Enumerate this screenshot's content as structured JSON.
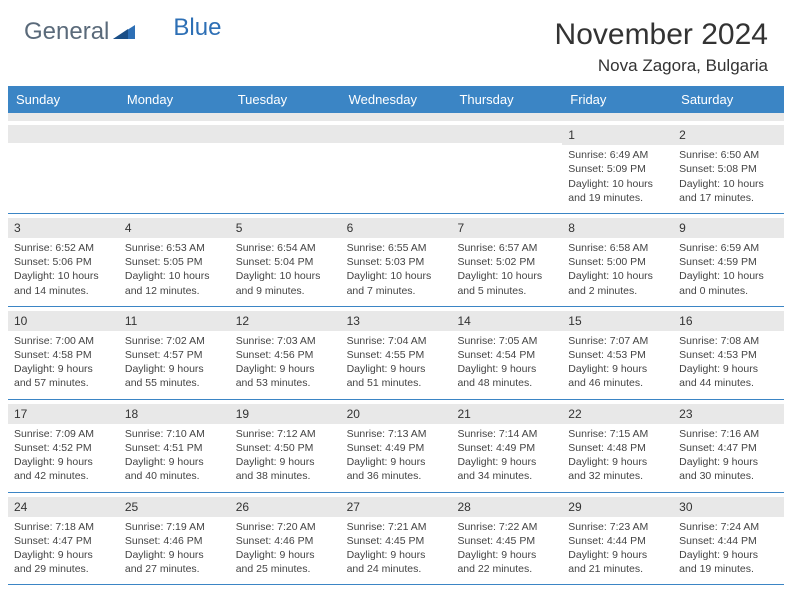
{
  "logo": {
    "part1": "General",
    "part2": "Blue"
  },
  "title": "November 2024",
  "location": "Nova Zagora, Bulgaria",
  "colors": {
    "header_bg": "#3b85c5",
    "header_fg": "#ffffff",
    "daynum_bg": "#e8e8e8",
    "rule": "#3b85c5",
    "text": "#333333",
    "logo_gray": "#5a6a7a",
    "logo_blue": "#2d6fb5"
  },
  "day_names": [
    "Sunday",
    "Monday",
    "Tuesday",
    "Wednesday",
    "Thursday",
    "Friday",
    "Saturday"
  ],
  "weeks": [
    [
      {
        "n": "",
        "sunrise": "",
        "sunset": "",
        "day": ""
      },
      {
        "n": "",
        "sunrise": "",
        "sunset": "",
        "day": ""
      },
      {
        "n": "",
        "sunrise": "",
        "sunset": "",
        "day": ""
      },
      {
        "n": "",
        "sunrise": "",
        "sunset": "",
        "day": ""
      },
      {
        "n": "",
        "sunrise": "",
        "sunset": "",
        "day": ""
      },
      {
        "n": "1",
        "sunrise": "Sunrise: 6:49 AM",
        "sunset": "Sunset: 5:09 PM",
        "day": "Daylight: 10 hours and 19 minutes."
      },
      {
        "n": "2",
        "sunrise": "Sunrise: 6:50 AM",
        "sunset": "Sunset: 5:08 PM",
        "day": "Daylight: 10 hours and 17 minutes."
      }
    ],
    [
      {
        "n": "3",
        "sunrise": "Sunrise: 6:52 AM",
        "sunset": "Sunset: 5:06 PM",
        "day": "Daylight: 10 hours and 14 minutes."
      },
      {
        "n": "4",
        "sunrise": "Sunrise: 6:53 AM",
        "sunset": "Sunset: 5:05 PM",
        "day": "Daylight: 10 hours and 12 minutes."
      },
      {
        "n": "5",
        "sunrise": "Sunrise: 6:54 AM",
        "sunset": "Sunset: 5:04 PM",
        "day": "Daylight: 10 hours and 9 minutes."
      },
      {
        "n": "6",
        "sunrise": "Sunrise: 6:55 AM",
        "sunset": "Sunset: 5:03 PM",
        "day": "Daylight: 10 hours and 7 minutes."
      },
      {
        "n": "7",
        "sunrise": "Sunrise: 6:57 AM",
        "sunset": "Sunset: 5:02 PM",
        "day": "Daylight: 10 hours and 5 minutes."
      },
      {
        "n": "8",
        "sunrise": "Sunrise: 6:58 AM",
        "sunset": "Sunset: 5:00 PM",
        "day": "Daylight: 10 hours and 2 minutes."
      },
      {
        "n": "9",
        "sunrise": "Sunrise: 6:59 AM",
        "sunset": "Sunset: 4:59 PM",
        "day": "Daylight: 10 hours and 0 minutes."
      }
    ],
    [
      {
        "n": "10",
        "sunrise": "Sunrise: 7:00 AM",
        "sunset": "Sunset: 4:58 PM",
        "day": "Daylight: 9 hours and 57 minutes."
      },
      {
        "n": "11",
        "sunrise": "Sunrise: 7:02 AM",
        "sunset": "Sunset: 4:57 PM",
        "day": "Daylight: 9 hours and 55 minutes."
      },
      {
        "n": "12",
        "sunrise": "Sunrise: 7:03 AM",
        "sunset": "Sunset: 4:56 PM",
        "day": "Daylight: 9 hours and 53 minutes."
      },
      {
        "n": "13",
        "sunrise": "Sunrise: 7:04 AM",
        "sunset": "Sunset: 4:55 PM",
        "day": "Daylight: 9 hours and 51 minutes."
      },
      {
        "n": "14",
        "sunrise": "Sunrise: 7:05 AM",
        "sunset": "Sunset: 4:54 PM",
        "day": "Daylight: 9 hours and 48 minutes."
      },
      {
        "n": "15",
        "sunrise": "Sunrise: 7:07 AM",
        "sunset": "Sunset: 4:53 PM",
        "day": "Daylight: 9 hours and 46 minutes."
      },
      {
        "n": "16",
        "sunrise": "Sunrise: 7:08 AM",
        "sunset": "Sunset: 4:53 PM",
        "day": "Daylight: 9 hours and 44 minutes."
      }
    ],
    [
      {
        "n": "17",
        "sunrise": "Sunrise: 7:09 AM",
        "sunset": "Sunset: 4:52 PM",
        "day": "Daylight: 9 hours and 42 minutes."
      },
      {
        "n": "18",
        "sunrise": "Sunrise: 7:10 AM",
        "sunset": "Sunset: 4:51 PM",
        "day": "Daylight: 9 hours and 40 minutes."
      },
      {
        "n": "19",
        "sunrise": "Sunrise: 7:12 AM",
        "sunset": "Sunset: 4:50 PM",
        "day": "Daylight: 9 hours and 38 minutes."
      },
      {
        "n": "20",
        "sunrise": "Sunrise: 7:13 AM",
        "sunset": "Sunset: 4:49 PM",
        "day": "Daylight: 9 hours and 36 minutes."
      },
      {
        "n": "21",
        "sunrise": "Sunrise: 7:14 AM",
        "sunset": "Sunset: 4:49 PM",
        "day": "Daylight: 9 hours and 34 minutes."
      },
      {
        "n": "22",
        "sunrise": "Sunrise: 7:15 AM",
        "sunset": "Sunset: 4:48 PM",
        "day": "Daylight: 9 hours and 32 minutes."
      },
      {
        "n": "23",
        "sunrise": "Sunrise: 7:16 AM",
        "sunset": "Sunset: 4:47 PM",
        "day": "Daylight: 9 hours and 30 minutes."
      }
    ],
    [
      {
        "n": "24",
        "sunrise": "Sunrise: 7:18 AM",
        "sunset": "Sunset: 4:47 PM",
        "day": "Daylight: 9 hours and 29 minutes."
      },
      {
        "n": "25",
        "sunrise": "Sunrise: 7:19 AM",
        "sunset": "Sunset: 4:46 PM",
        "day": "Daylight: 9 hours and 27 minutes."
      },
      {
        "n": "26",
        "sunrise": "Sunrise: 7:20 AM",
        "sunset": "Sunset: 4:46 PM",
        "day": "Daylight: 9 hours and 25 minutes."
      },
      {
        "n": "27",
        "sunrise": "Sunrise: 7:21 AM",
        "sunset": "Sunset: 4:45 PM",
        "day": "Daylight: 9 hours and 24 minutes."
      },
      {
        "n": "28",
        "sunrise": "Sunrise: 7:22 AM",
        "sunset": "Sunset: 4:45 PM",
        "day": "Daylight: 9 hours and 22 minutes."
      },
      {
        "n": "29",
        "sunrise": "Sunrise: 7:23 AM",
        "sunset": "Sunset: 4:44 PM",
        "day": "Daylight: 9 hours and 21 minutes."
      },
      {
        "n": "30",
        "sunrise": "Sunrise: 7:24 AM",
        "sunset": "Sunset: 4:44 PM",
        "day": "Daylight: 9 hours and 19 minutes."
      }
    ]
  ]
}
